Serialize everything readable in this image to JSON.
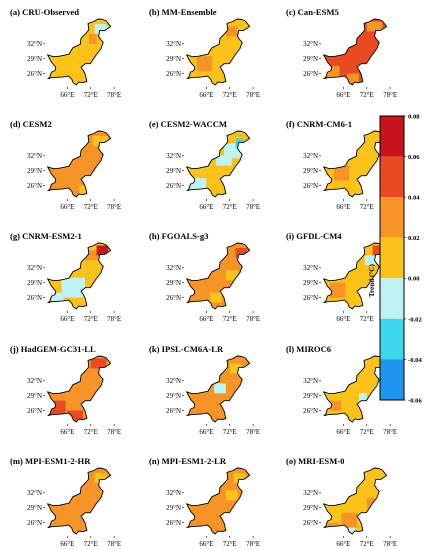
{
  "chart_data": {
    "type": "heatmap",
    "colorbar": {
      "label": "Trend (°C)",
      "tick_labels": [
        "0.08",
        "0.06",
        "0.04",
        "0.02",
        "0.00",
        "-0.02",
        "-0.04",
        "-0.06"
      ],
      "bins": [
        {
          "min": 0.06,
          "max": 0.08,
          "color": "#c8141c"
        },
        {
          "min": 0.04,
          "max": 0.06,
          "color": "#ea4a22"
        },
        {
          "min": 0.02,
          "max": 0.04,
          "color": "#f79428"
        },
        {
          "min": 0.0,
          "max": 0.02,
          "color": "#fbc21a"
        },
        {
          "min": -0.02,
          "max": 0.0,
          "color": "#bff2f2"
        },
        {
          "min": -0.04,
          "max": -0.02,
          "color": "#3ed6ec"
        },
        {
          "min": -0.06,
          "max": -0.04,
          "color": "#1e96ee"
        }
      ]
    },
    "axes": {
      "x_ticks": [
        "66°E",
        "72°E",
        "78°E"
      ],
      "y_ticks": [
        "32°N",
        "29°N",
        "26°N"
      ]
    },
    "panels": [
      {
        "title": "(a) CRU-Observed",
        "base": 0.01,
        "patches": [
          {
            "lon": 74.5,
            "lat": 35.0,
            "w": 3,
            "h": 2,
            "v": -0.01
          },
          {
            "lon": 76.5,
            "lat": 34.5,
            "w": 2,
            "h": 2,
            "v": -0.01
          },
          {
            "lon": 72.5,
            "lat": 33.0,
            "w": 2,
            "h": 2,
            "v": 0.03
          }
        ]
      },
      {
        "title": "(b) MM-Ensemble",
        "base": 0.01,
        "patches": [
          {
            "lon": 65.5,
            "lat": 28.0,
            "w": 4,
            "h": 3,
            "v": 0.03
          },
          {
            "lon": 72.5,
            "lat": 34.5,
            "w": 3,
            "h": 2,
            "v": 0.03
          }
        ]
      },
      {
        "title": "(c) Can-ESM5",
        "base": 0.05,
        "patches": [
          {
            "lon": 63.0,
            "lat": 26.0,
            "w": 4,
            "h": 3,
            "v": 0.03
          },
          {
            "lon": 68.5,
            "lat": 25.0,
            "w": 3,
            "h": 2,
            "v": 0.03
          },
          {
            "lon": 74.0,
            "lat": 35.5,
            "w": 4,
            "h": 2,
            "v": 0.03
          }
        ]
      },
      {
        "title": "(d) CESM2",
        "base": 0.03,
        "patches": [
          {
            "lon": 74.5,
            "lat": 35.0,
            "w": 4,
            "h": 2,
            "v": 0.01
          },
          {
            "lon": 70.5,
            "lat": 25.0,
            "w": 3,
            "h": 2,
            "v": 0.01
          }
        ]
      },
      {
        "title": "(e) CESM2-WACCM",
        "base": 0.01,
        "patches": [
          {
            "lon": 63.0,
            "lat": 26.0,
            "w": 6,
            "h": 3,
            "v": -0.01
          },
          {
            "lon": 70.5,
            "lat": 31.0,
            "w": 4,
            "h": 2,
            "v": -0.01
          },
          {
            "lon": 73.0,
            "lat": 33.0,
            "w": 5,
            "h": 3,
            "v": -0.01
          },
          {
            "lon": 74.5,
            "lat": 34.5,
            "w": 2,
            "h": 2,
            "v": -0.03
          }
        ]
      },
      {
        "title": "(f) CNRM-CM6-1",
        "base": 0.01,
        "patches": [
          {
            "lon": 65.5,
            "lat": 28.5,
            "w": 4,
            "h": 3,
            "v": 0.03
          }
        ]
      },
      {
        "title": "(g) CNRM-ESM2-1",
        "base": 0.01,
        "patches": [
          {
            "lon": 67.5,
            "lat": 28.0,
            "w": 6,
            "h": 4,
            "v": -0.01
          },
          {
            "lon": 63.5,
            "lat": 26.0,
            "w": 3,
            "h": 2,
            "v": -0.01
          },
          {
            "lon": 72.5,
            "lat": 34.5,
            "w": 4,
            "h": 2,
            "v": 0.03
          },
          {
            "lon": 75.0,
            "lat": 35.5,
            "w": 3,
            "h": 2,
            "v": 0.07
          }
        ]
      },
      {
        "title": "(h) FGOALS-g3",
        "base": 0.03,
        "patches": [
          {
            "lon": 68.5,
            "lat": 26.0,
            "w": 3,
            "h": 2,
            "v": 0.01
          },
          {
            "lon": 72.5,
            "lat": 30.5,
            "w": 3,
            "h": 2,
            "v": 0.01
          },
          {
            "lon": 75.0,
            "lat": 35.0,
            "w": 3,
            "h": 2,
            "v": 0.05
          }
        ]
      },
      {
        "title": "(i) GFDL-CM4",
        "base": 0.01,
        "patches": [
          {
            "lon": 73.0,
            "lat": 33.5,
            "w": 3,
            "h": 2,
            "v": -0.01
          },
          {
            "lon": 75.0,
            "lat": 35.5,
            "w": 3,
            "h": 2,
            "v": 0.05
          },
          {
            "lon": 64.5,
            "lat": 27.5,
            "w": 4,
            "h": 3,
            "v": 0.03
          }
        ]
      },
      {
        "title": "(j) HadGEM-GC31-LL",
        "base": 0.03,
        "patches": [
          {
            "lon": 63.0,
            "lat": 26.5,
            "w": 5,
            "h": 3,
            "v": 0.05
          },
          {
            "lon": 68.0,
            "lat": 25.0,
            "w": 4,
            "h": 2,
            "v": 0.05
          },
          {
            "lon": 74.0,
            "lat": 35.5,
            "w": 4,
            "h": 2,
            "v": 0.05
          }
        ]
      },
      {
        "title": "(k) IPSL-CM6A-LR",
        "base": 0.03,
        "patches": [
          {
            "lon": 69.5,
            "lat": 30.5,
            "w": 3,
            "h": 2,
            "v": -0.01
          },
          {
            "lon": 73.5,
            "lat": 34.5,
            "w": 3,
            "h": 2,
            "v": 0.01
          }
        ]
      },
      {
        "title": "(l) MIROC6",
        "base": 0.01,
        "patches": [
          {
            "lon": 71.0,
            "lat": 28.5,
            "w": 2,
            "h": 2,
            "v": -0.01
          },
          {
            "lon": 64.0,
            "lat": 27.0,
            "w": 3,
            "h": 2,
            "v": 0.03
          }
        ]
      },
      {
        "title": "(m) MPI-ESM1-2-HR",
        "base": 0.03,
        "patches": [
          {
            "lon": 74.5,
            "lat": 35.0,
            "w": 3,
            "h": 2,
            "v": 0.01
          }
        ]
      },
      {
        "title": "(n) MPI-ESM1-2-LR",
        "base": 0.03,
        "patches": [
          {
            "lon": 72.5,
            "lat": 31.5,
            "w": 3,
            "h": 2,
            "v": 0.01
          },
          {
            "lon": 74.5,
            "lat": 35.0,
            "w": 3,
            "h": 2,
            "v": 0.01
          }
        ]
      },
      {
        "title": "(o) MRI-ESM-0",
        "base": 0.01,
        "patches": [
          {
            "lon": 67.5,
            "lat": 26.5,
            "w": 4,
            "h": 3,
            "v": 0.03
          },
          {
            "lon": 63.5,
            "lat": 25.0,
            "w": 3,
            "h": 2,
            "v": 0.03
          },
          {
            "lon": 73.0,
            "lat": 30.0,
            "w": 2,
            "h": 2,
            "v": 0.03
          },
          {
            "lon": 68.0,
            "lat": 24.5,
            "w": 2,
            "h": 1,
            "v": -0.01
          }
        ]
      }
    ]
  }
}
